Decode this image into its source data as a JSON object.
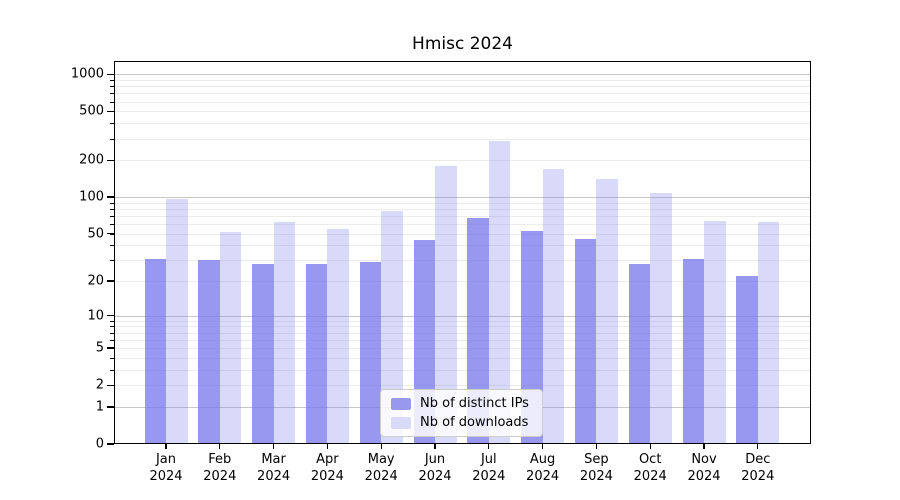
{
  "title": "Hmisc 2024",
  "colors": {
    "bar_base_rgb": "118,118,235",
    "ips_bar_alpha": 0.75,
    "downloads_bar_alpha": 0.28,
    "ips_swatch": "#9898ec",
    "downloads_swatch": "#d9d9f8",
    "major_grid": "#c8c8c8",
    "minor_grid": "#ececec",
    "axis": "#000000"
  },
  "legend": {
    "items": [
      {
        "label": "Nb of distinct IPs",
        "swatch": "ips_swatch"
      },
      {
        "label": "Nb of downloads",
        "swatch": "downloads_swatch"
      }
    ]
  },
  "x_axis": {
    "months": [
      "Jan",
      "Feb",
      "Mar",
      "Apr",
      "May",
      "Jun",
      "Jul",
      "Aug",
      "Sep",
      "Oct",
      "Nov",
      "Dec"
    ],
    "year": "2024"
  },
  "y_axis": {
    "tick_labels": [
      "0",
      "1",
      "2",
      "5",
      "10",
      "20",
      "50",
      "100",
      "200",
      "500",
      "1000"
    ]
  },
  "chart_data": {
    "type": "bar",
    "title": "Hmisc 2024",
    "categories": [
      "Jan 2024",
      "Feb 2024",
      "Mar 2024",
      "Apr 2024",
      "May 2024",
      "Jun 2024",
      "Jul 2024",
      "Aug 2024",
      "Sep 2024",
      "Oct 2024",
      "Nov 2024",
      "Dec 2024"
    ],
    "series": [
      {
        "name": "Nb of distinct IPs",
        "values": [
          31,
          30,
          28,
          28,
          29,
          44,
          68,
          53,
          45,
          28,
          31,
          22
        ]
      },
      {
        "name": "Nb of downloads",
        "values": [
          96,
          52,
          62,
          55,
          77,
          180,
          285,
          170,
          140,
          108,
          64,
          62
        ]
      }
    ],
    "xlabel": "",
    "ylabel": "",
    "y_scale": "log10(1+v)",
    "y_ticks": [
      0,
      1,
      2,
      5,
      10,
      20,
      50,
      100,
      200,
      500,
      1000
    ],
    "y_minor_ticks": [
      2,
      3,
      4,
      5,
      6,
      7,
      8,
      9,
      20,
      30,
      40,
      50,
      60,
      70,
      80,
      90,
      200,
      300,
      400,
      500,
      600,
      700,
      800,
      900
    ],
    "grid": true,
    "legend_position": "lower center"
  }
}
